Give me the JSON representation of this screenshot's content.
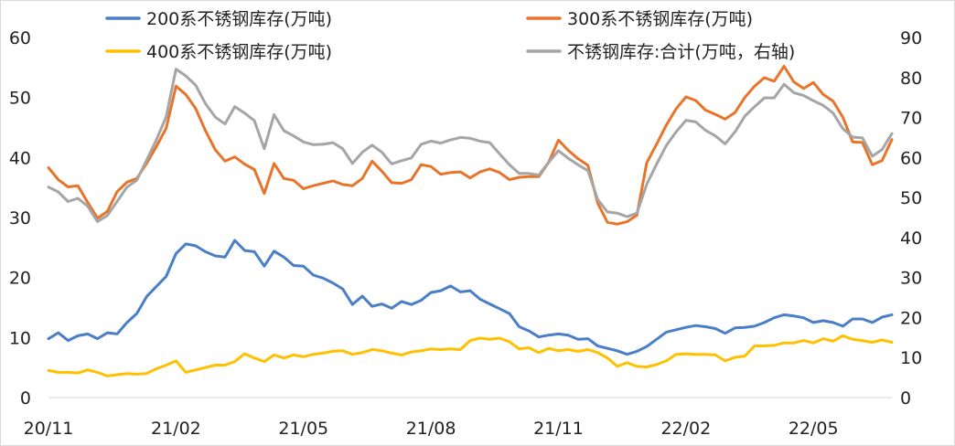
{
  "chart_data": {
    "type": "line",
    "title": "",
    "xlabel": "",
    "ylabel": "",
    "x_tick_labels": [
      "20/11",
      "21/02",
      "21/05",
      "21/08",
      "21/11",
      "22/02",
      "22/05"
    ],
    "x_tick_indices": [
      0,
      13,
      26,
      39,
      52,
      65,
      78
    ],
    "ylim_left": [
      0,
      60
    ],
    "yticks_left": [
      0,
      10,
      20,
      30,
      40,
      50,
      60
    ],
    "ylim_right": [
      0,
      90
    ],
    "yticks_right": [
      0,
      10,
      20,
      30,
      40,
      50,
      60,
      70,
      80,
      90
    ],
    "grid": false,
    "legend": "top, two columns",
    "series": [
      {
        "name": "200系不锈钢库存(万吨)",
        "axis": "left",
        "color": "#4a7fc7",
        "values": [
          9.8,
          10.8,
          9.5,
          10.3,
          10.6,
          9.8,
          10.8,
          10.6,
          12.5,
          14.0,
          16.8,
          18.5,
          20.2,
          24.0,
          25.6,
          25.3,
          24.3,
          23.6,
          23.4,
          26.2,
          24.5,
          24.3,
          21.9,
          24.4,
          23.4,
          22.0,
          21.9,
          20.4,
          19.9,
          19.1,
          18.1,
          15.5,
          16.9,
          15.2,
          15.6,
          14.9,
          16.0,
          15.5,
          16.2,
          17.5,
          17.8,
          18.6,
          17.6,
          17.8,
          16.4,
          15.6,
          14.8,
          14.0,
          11.8,
          11.1,
          10.1,
          10.4,
          10.6,
          10.4,
          9.7,
          9.8,
          8.6,
          8.2,
          7.8,
          7.2,
          7.7,
          8.5,
          9.7,
          10.9,
          11.3,
          11.7,
          12.0,
          11.8,
          11.5,
          10.7,
          11.6,
          11.7,
          11.9,
          12.5,
          13.3,
          13.8,
          13.6,
          13.3,
          12.5,
          12.8,
          12.5,
          11.9,
          13.1,
          13.1,
          12.5,
          13.4,
          13.8
        ]
      },
      {
        "name": "300系不锈钢库存(万吨)",
        "axis": "left",
        "color": "#e8742a",
        "values": [
          38.3,
          36.3,
          35.1,
          35.3,
          32.5,
          29.9,
          31.0,
          34.3,
          35.9,
          36.5,
          39.0,
          41.8,
          44.9,
          51.9,
          50.5,
          48.2,
          44.5,
          41.3,
          39.4,
          40.1,
          38.9,
          38.0,
          34.0,
          39.0,
          36.5,
          36.2,
          34.8,
          35.3,
          35.7,
          36.1,
          35.5,
          35.3,
          36.5,
          39.4,
          37.7,
          35.8,
          35.7,
          36.3,
          38.8,
          38.5,
          37.2,
          37.5,
          37.6,
          36.6,
          37.6,
          38.1,
          37.5,
          36.3,
          36.7,
          36.8,
          36.8,
          39.2,
          42.9,
          41.2,
          39.8,
          38.7,
          32.4,
          29.2,
          28.9,
          29.3,
          30.4,
          39.1,
          42.2,
          45.4,
          48.1,
          50.1,
          49.5,
          47.9,
          47.2,
          46.4,
          47.5,
          50.0,
          51.9,
          53.3,
          52.7,
          55.2,
          52.6,
          51.5,
          52.5,
          50.5,
          49.4,
          46.7,
          42.6,
          42.5,
          38.8,
          39.5,
          43.0
        ]
      },
      {
        "name": "400系不锈钢库存(万吨)",
        "axis": "left",
        "color": "#ffc000",
        "values": [
          4.5,
          4.2,
          4.2,
          4.1,
          4.6,
          4.2,
          3.6,
          3.8,
          4.0,
          3.9,
          4.0,
          4.8,
          5.4,
          6.1,
          4.2,
          4.6,
          5.0,
          5.4,
          5.4,
          6.0,
          7.3,
          6.6,
          6.0,
          7.1,
          6.6,
          7.1,
          6.8,
          7.2,
          7.4,
          7.7,
          7.8,
          7.2,
          7.5,
          8.0,
          7.8,
          7.4,
          7.1,
          7.6,
          7.8,
          8.1,
          8.0,
          8.1,
          8.0,
          9.5,
          9.9,
          9.7,
          9.9,
          9.3,
          8.1,
          8.3,
          7.5,
          8.2,
          7.8,
          8.0,
          7.7,
          8.0,
          7.5,
          6.6,
          5.2,
          5.8,
          5.2,
          5.1,
          5.5,
          6.1,
          7.2,
          7.3,
          7.2,
          7.2,
          7.1,
          6.1,
          6.7,
          6.9,
          8.6,
          8.6,
          8.7,
          9.1,
          9.1,
          9.5,
          9.1,
          9.8,
          9.4,
          10.3,
          9.7,
          9.5,
          9.2,
          9.6,
          9.2
        ]
      },
      {
        "name": "不锈钢库存:合计(万吨，右轴)",
        "axis": "right",
        "color": "#a5a5a5",
        "values": [
          52.6,
          51.4,
          49.0,
          49.8,
          47.8,
          44.0,
          45.5,
          49.0,
          52.6,
          54.3,
          59.3,
          64.4,
          70.2,
          82.1,
          80.4,
          78.1,
          73.5,
          70.1,
          68.4,
          72.7,
          71.1,
          69.2,
          62.2,
          70.7,
          66.7,
          65.4,
          63.9,
          63.2,
          63.3,
          63.7,
          62.2,
          58.5,
          61.3,
          63.1,
          61.3,
          58.4,
          59.2,
          59.9,
          63.3,
          64.1,
          63.6,
          64.4,
          65.0,
          64.8,
          64.1,
          63.7,
          60.9,
          58.2,
          56.0,
          56.0,
          55.6,
          58.8,
          61.7,
          59.8,
          58.2,
          56.7,
          49.5,
          46.4,
          46.1,
          45.2,
          46.1,
          53.3,
          58.3,
          63.0,
          66.4,
          69.3,
          68.9,
          66.8,
          65.4,
          63.4,
          66.4,
          70.3,
          72.7,
          74.9,
          74.9,
          78.3,
          76.2,
          75.5,
          74.2,
          73.0,
          71.1,
          67.2,
          65.1,
          64.9,
          60.3,
          62.0,
          66.0
        ]
      }
    ]
  }
}
